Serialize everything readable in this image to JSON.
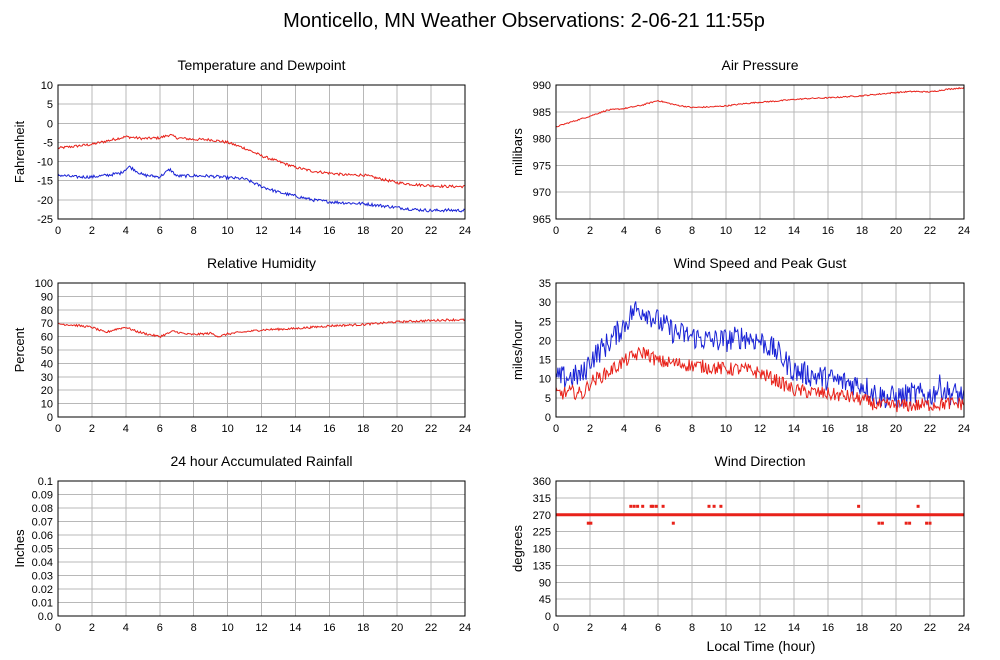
{
  "page": {
    "title": "Monticello, MN Weather Observations: 2-06-21 11:55p",
    "x_axis_label": "Local Time (hour)"
  },
  "colors": {
    "red": "#e8221a",
    "blue": "#1a23d6",
    "grid": "#b8b8b8"
  },
  "chart_data": [
    {
      "id": "temp",
      "type": "line",
      "title": "Temperature and Dewpoint",
      "ylabel": "Fahrenheit",
      "xlim": [
        0,
        24
      ],
      "ylim": [
        -25,
        10
      ],
      "yticks": [
        10,
        5,
        0,
        -5,
        -10,
        -15,
        -20,
        -25
      ],
      "xticks": [
        0,
        2,
        4,
        6,
        8,
        10,
        12,
        14,
        16,
        18,
        20,
        22,
        24
      ],
      "grid": true,
      "series": [
        {
          "color": "red",
          "noise": 0.35,
          "points": [
            [
              0,
              -6.5
            ],
            [
              1,
              -6
            ],
            [
              2,
              -5.5
            ],
            [
              3,
              -4.5
            ],
            [
              4,
              -3.5
            ],
            [
              5,
              -4
            ],
            [
              6,
              -3.8
            ],
            [
              6.6,
              -3
            ],
            [
              7,
              -3.8
            ],
            [
              8,
              -4.2
            ],
            [
              9,
              -4.3
            ],
            [
              10,
              -5
            ],
            [
              11,
              -6.5
            ],
            [
              12,
              -8.5
            ],
            [
              13,
              -10
            ],
            [
              14,
              -11.5
            ],
            [
              15,
              -12.5
            ],
            [
              16,
              -13
            ],
            [
              17,
              -13.5
            ],
            [
              18,
              -13.5
            ],
            [
              19,
              -14.5
            ],
            [
              20,
              -15.5
            ],
            [
              21,
              -16
            ],
            [
              22,
              -16.3
            ],
            [
              23,
              -16.5
            ],
            [
              24,
              -16.5
            ]
          ]
        },
        {
          "color": "blue",
          "noise": 0.4,
          "points": [
            [
              0,
              -13.5
            ],
            [
              1,
              -14
            ],
            [
              2,
              -14
            ],
            [
              3,
              -13.5
            ],
            [
              3.7,
              -13
            ],
            [
              4.2,
              -11.3
            ],
            [
              5,
              -13.5
            ],
            [
              6,
              -14
            ],
            [
              6.6,
              -12
            ],
            [
              7,
              -13.8
            ],
            [
              8,
              -13.7
            ],
            [
              9,
              -13.8
            ],
            [
              10,
              -14.2
            ],
            [
              11,
              -14.5
            ],
            [
              12,
              -16.5
            ],
            [
              13,
              -18
            ],
            [
              14,
              -19
            ],
            [
              15,
              -20
            ],
            [
              16,
              -20.5
            ],
            [
              17,
              -20.8
            ],
            [
              18,
              -21
            ],
            [
              19,
              -21.5
            ],
            [
              20,
              -22
            ],
            [
              21,
              -22.5
            ],
            [
              22,
              -22.8
            ],
            [
              23,
              -22.7
            ],
            [
              24,
              -22.8
            ]
          ]
        }
      ]
    },
    {
      "id": "pressure",
      "type": "line",
      "title": "Air Pressure",
      "ylabel": "millibars",
      "xlim": [
        0,
        24
      ],
      "ylim": [
        965,
        990
      ],
      "yticks": [
        990,
        985,
        980,
        975,
        970,
        965
      ],
      "xticks": [
        0,
        2,
        4,
        6,
        8,
        10,
        12,
        14,
        16,
        18,
        20,
        22,
        24
      ],
      "grid": true,
      "series": [
        {
          "color": "red",
          "noise": 0.12,
          "points": [
            [
              0,
              982.2
            ],
            [
              1,
              983.2
            ],
            [
              2,
              984.2
            ],
            [
              3,
              985.3
            ],
            [
              4,
              985.6
            ],
            [
              5,
              986.2
            ],
            [
              6,
              987.1
            ],
            [
              7,
              986.3
            ],
            [
              8,
              985.8
            ],
            [
              9,
              985.9
            ],
            [
              10,
              986.1
            ],
            [
              11,
              986.5
            ],
            [
              12,
              986.8
            ],
            [
              13,
              987
            ],
            [
              14,
              987.3
            ],
            [
              15,
              987.5
            ],
            [
              16,
              987.6
            ],
            [
              17,
              987.8
            ],
            [
              18,
              988
            ],
            [
              19,
              988.3
            ],
            [
              20,
              988.6
            ],
            [
              21,
              988.8
            ],
            [
              22,
              988.7
            ],
            [
              23,
              989.2
            ],
            [
              24,
              989.5
            ]
          ]
        }
      ]
    },
    {
      "id": "humidity",
      "type": "line",
      "title": "Relative Humidity",
      "ylabel": "Percent",
      "xlim": [
        0,
        24
      ],
      "ylim": [
        0,
        100
      ],
      "yticks": [
        100,
        90,
        80,
        70,
        60,
        50,
        40,
        30,
        20,
        10,
        0
      ],
      "xticks": [
        0,
        2,
        4,
        6,
        8,
        10,
        12,
        14,
        16,
        18,
        20,
        22,
        24
      ],
      "grid": true,
      "series": [
        {
          "color": "red",
          "noise": 0.8,
          "points": [
            [
              0,
              69.5
            ],
            [
              1,
              68.5
            ],
            [
              2,
              67
            ],
            [
              2.8,
              63
            ],
            [
              3.4,
              65.5
            ],
            [
              4,
              67
            ],
            [
              4.6,
              64
            ],
            [
              5.2,
              62
            ],
            [
              6,
              60
            ],
            [
              6.8,
              64
            ],
            [
              7.5,
              62
            ],
            [
              8,
              61.5
            ],
            [
              9,
              62.5
            ],
            [
              9.5,
              60
            ],
            [
              10,
              62
            ],
            [
              11,
              63.5
            ],
            [
              12,
              65
            ],
            [
              13,
              65.5
            ],
            [
              14,
              66
            ],
            [
              15,
              67
            ],
            [
              16,
              68
            ],
            [
              17,
              68.5
            ],
            [
              18,
              69
            ],
            [
              19,
              70
            ],
            [
              20,
              71
            ],
            [
              21,
              71.5
            ],
            [
              22,
              72
            ],
            [
              23,
              72.5
            ],
            [
              24,
              72.5
            ]
          ]
        }
      ]
    },
    {
      "id": "wind",
      "type": "line",
      "title": "Wind Speed and Peak Gust",
      "ylabel": "miles/hour",
      "xlim": [
        0,
        24
      ],
      "ylim": [
        0,
        35
      ],
      "yticks": [
        35,
        30,
        25,
        20,
        15,
        10,
        5,
        0
      ],
      "xticks": [
        0,
        2,
        4,
        6,
        8,
        10,
        12,
        14,
        16,
        18,
        20,
        22,
        24
      ],
      "grid": true,
      "series": [
        {
          "color": "blue",
          "noise": 3.2,
          "points": [
            [
              0,
              10
            ],
            [
              1,
              10.5
            ],
            [
              1.6,
              11
            ],
            [
              2,
              15
            ],
            [
              3,
              19
            ],
            [
              4,
              24
            ],
            [
              4.6,
              28
            ],
            [
              5.2,
              28
            ],
            [
              6,
              25
            ],
            [
              7,
              22
            ],
            [
              8,
              21
            ],
            [
              9,
              20
            ],
            [
              10,
              20
            ],
            [
              11,
              21
            ],
            [
              12,
              20
            ],
            [
              13,
              17
            ],
            [
              14,
              12
            ],
            [
              15,
              11
            ],
            [
              16,
              10
            ],
            [
              17,
              9
            ],
            [
              18,
              8.5
            ],
            [
              19,
              5.5
            ],
            [
              20,
              5
            ],
            [
              21,
              6
            ],
            [
              22,
              5.5
            ],
            [
              22.6,
              8
            ],
            [
              23,
              6.5
            ],
            [
              24,
              5.5
            ]
          ]
        },
        {
          "color": "red",
          "noise": 1.8,
          "points": [
            [
              0,
              6
            ],
            [
              1,
              6.5
            ],
            [
              1.6,
              6
            ],
            [
              2,
              9
            ],
            [
              3,
              11.5
            ],
            [
              4,
              14.5
            ],
            [
              4.6,
              16
            ],
            [
              5.2,
              17
            ],
            [
              6,
              14.5
            ],
            [
              7,
              14
            ],
            [
              8,
              13.5
            ],
            [
              9,
              13
            ],
            [
              10,
              12.5
            ],
            [
              11,
              12.5
            ],
            [
              12,
              11.5
            ],
            [
              13,
              9.5
            ],
            [
              14,
              7
            ],
            [
              15,
              6.5
            ],
            [
              16,
              6
            ],
            [
              17,
              5.5
            ],
            [
              18,
              4.5
            ],
            [
              19,
              3
            ],
            [
              20,
              3
            ],
            [
              21,
              3
            ],
            [
              22,
              3.2
            ],
            [
              23,
              3.5
            ],
            [
              24,
              3.5
            ]
          ]
        }
      ]
    },
    {
      "id": "rain",
      "type": "line",
      "title": "24 hour Accumulated Rainfall",
      "ylabel": "Inches",
      "xlim": [
        0,
        24
      ],
      "ylim": [
        0,
        0.1
      ],
      "yticks": [
        0.1,
        0.09,
        0.08,
        0.07,
        0.06,
        0.05,
        0.04,
        0.03,
        0.02,
        0.01,
        "0.0"
      ],
      "xticks": [
        0,
        2,
        4,
        6,
        8,
        10,
        12,
        14,
        16,
        18,
        20,
        22,
        24
      ],
      "grid": true,
      "series": [
        {
          "color": "red",
          "noise": 0,
          "points": [
            [
              0,
              0
            ],
            [
              24,
              0
            ]
          ]
        }
      ]
    },
    {
      "id": "direction",
      "type": "scatter",
      "title": "Wind Direction",
      "ylabel": "degrees",
      "xlim": [
        0,
        24
      ],
      "ylim": [
        0,
        360
      ],
      "yticks": [
        360,
        315,
        270,
        225,
        180,
        135,
        90,
        45,
        0
      ],
      "xticks": [
        0,
        2,
        4,
        6,
        8,
        10,
        12,
        14,
        16,
        18,
        20,
        22,
        24
      ],
      "grid": true,
      "baseline": {
        "color": "red",
        "value": 270
      },
      "series": [
        {
          "color": "red",
          "points": [
            [
              1.9,
              247.5
            ],
            [
              2.05,
              247.5
            ],
            [
              4.4,
              292.5
            ],
            [
              4.6,
              292.5
            ],
            [
              4.8,
              292.5
            ],
            [
              5.1,
              292.5
            ],
            [
              5.6,
              292.5
            ],
            [
              5.7,
              292.5
            ],
            [
              5.9,
              292.5
            ],
            [
              6.3,
              292.5
            ],
            [
              6.9,
              247.5
            ],
            [
              9.0,
              292.5
            ],
            [
              9.3,
              292.5
            ],
            [
              9.7,
              292.5
            ],
            [
              17.8,
              292.5
            ],
            [
              19.0,
              247.5
            ],
            [
              19.2,
              247.5
            ],
            [
              20.6,
              247.5
            ],
            [
              20.8,
              247.5
            ],
            [
              21.3,
              292.5
            ],
            [
              21.8,
              247.5
            ],
            [
              22.0,
              247.5
            ]
          ]
        }
      ]
    }
  ]
}
